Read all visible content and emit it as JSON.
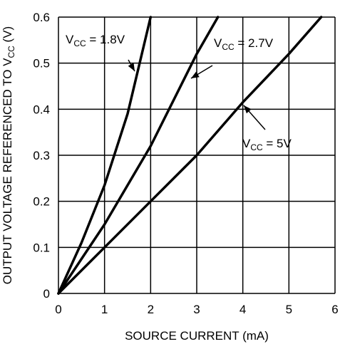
{
  "chart_data": {
    "type": "line",
    "xlabel": "SOURCE CURRENT (mA)",
    "ylabel_main": "OUTPUT VOLTAGE REFERENCED TO V",
    "ylabel_sub": "CC",
    "ylabel_tail": " (V)",
    "xlim": [
      0,
      6
    ],
    "ylim": [
      0,
      0.6
    ],
    "xticks": [
      0,
      1,
      2,
      3,
      4,
      5,
      6
    ],
    "yticks": [
      0,
      0.1,
      0.2,
      0.3,
      0.4,
      0.5,
      0.6
    ],
    "xtick_labels": [
      "0",
      "1",
      "2",
      "3",
      "4",
      "5",
      "6"
    ],
    "ytick_labels": [
      "0",
      "0.1",
      "0.2",
      "0.3",
      "0.4",
      "0.5",
      "0.6"
    ],
    "grid": true,
    "series": [
      {
        "name": "VCC = 1.8V",
        "label_main": "V",
        "label_sub": "CC",
        "label_tail": " = 1.8V",
        "x": [
          0,
          0.5,
          1.0,
          1.5,
          2.0
        ],
        "y": [
          0,
          0.11,
          0.235,
          0.39,
          0.6
        ]
      },
      {
        "name": "VCC = 2.7V",
        "label_main": "V",
        "label_sub": "CC",
        "label_tail": " = 2.7V",
        "x": [
          0,
          1.0,
          2.0,
          3.0,
          3.46
        ],
        "y": [
          0,
          0.15,
          0.32,
          0.52,
          0.6
        ]
      },
      {
        "name": "VCC = 5V",
        "label_main": "V",
        "label_sub": "CC",
        "label_tail": " = 5V",
        "x": [
          0,
          1.0,
          2.0,
          3.0,
          4.0,
          5.0,
          5.7
        ],
        "y": [
          0,
          0.1,
          0.2,
          0.3,
          0.415,
          0.52,
          0.6
        ]
      }
    ]
  }
}
